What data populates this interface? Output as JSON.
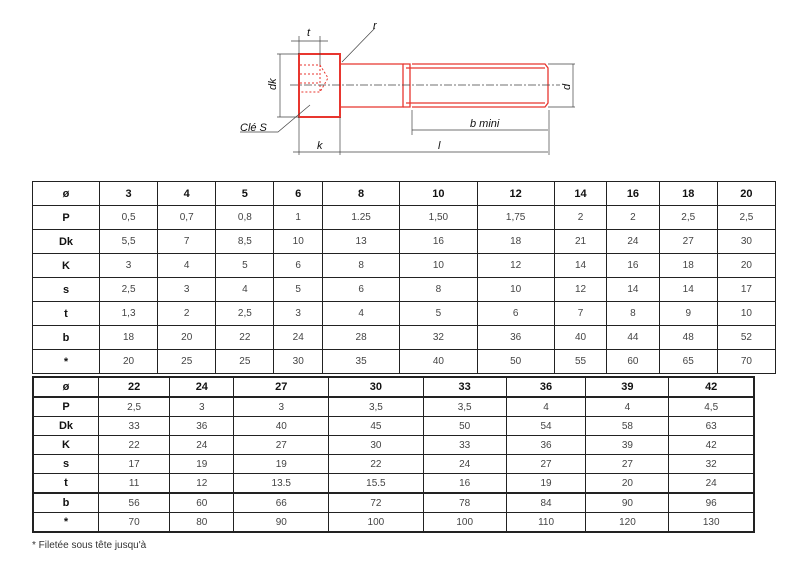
{
  "drawing": {
    "labels": {
      "t": "t",
      "r": "r",
      "dk": "dk",
      "d": "d",
      "cle": "Clé S",
      "bmini": "b mini",
      "k": "k",
      "l": "l"
    },
    "color": "#e8362f"
  },
  "table1": {
    "header": [
      "ø",
      "3",
      "4",
      "5",
      "6",
      "8",
      "10",
      "12",
      "14",
      "16",
      "18",
      "20"
    ],
    "rows": [
      [
        "P",
        "0,5",
        "0,7",
        "0,8",
        "1",
        "1.25",
        "1,50",
        "1,75",
        "2",
        "2",
        "2,5",
        "2,5"
      ],
      [
        "Dk",
        "5,5",
        "7",
        "8,5",
        "10",
        "13",
        "16",
        "18",
        "21",
        "24",
        "27",
        "30"
      ],
      [
        "K",
        "3",
        "4",
        "5",
        "6",
        "8",
        "10",
        "12",
        "14",
        "16",
        "18",
        "20"
      ],
      [
        "s",
        "2,5",
        "3",
        "4",
        "5",
        "6",
        "8",
        "10",
        "12",
        "14",
        "14",
        "17"
      ],
      [
        "t",
        "1,3",
        "2",
        "2,5",
        "3",
        "4",
        "5",
        "6",
        "7",
        "8",
        "9",
        "10"
      ],
      [
        "b",
        "18",
        "20",
        "22",
        "24",
        "28",
        "32",
        "36",
        "40",
        "44",
        "48",
        "52"
      ],
      [
        "*",
        "20",
        "25",
        "25",
        "30",
        "35",
        "40",
        "50",
        "55",
        "60",
        "65",
        "70"
      ]
    ]
  },
  "table2": {
    "header": [
      "ø",
      "22",
      "24",
      "27",
      "30",
      "33",
      "36",
      "39",
      "42"
    ],
    "rows": [
      [
        "P",
        "2,5",
        "3",
        "3",
        "3,5",
        "3,5",
        "4",
        "4",
        "4,5"
      ],
      [
        "Dk",
        "33",
        "36",
        "40",
        "45",
        "50",
        "54",
        "58",
        "63"
      ],
      [
        "K",
        "22",
        "24",
        "27",
        "30",
        "33",
        "36",
        "39",
        "42"
      ],
      [
        "s",
        "17",
        "19",
        "19",
        "22",
        "24",
        "27",
        "27",
        "32"
      ],
      [
        "t",
        "11",
        "12",
        "13.5",
        "15.5",
        "16",
        "19",
        "20",
        "24"
      ],
      [
        "b",
        "56",
        "60",
        "66",
        "72",
        "78",
        "84",
        "90",
        "96"
      ],
      [
        "*",
        "70",
        "80",
        "90",
        "100",
        "100",
        "110",
        "120",
        "130"
      ]
    ]
  },
  "footnote": "* Filetée sous tête jusqu'à"
}
